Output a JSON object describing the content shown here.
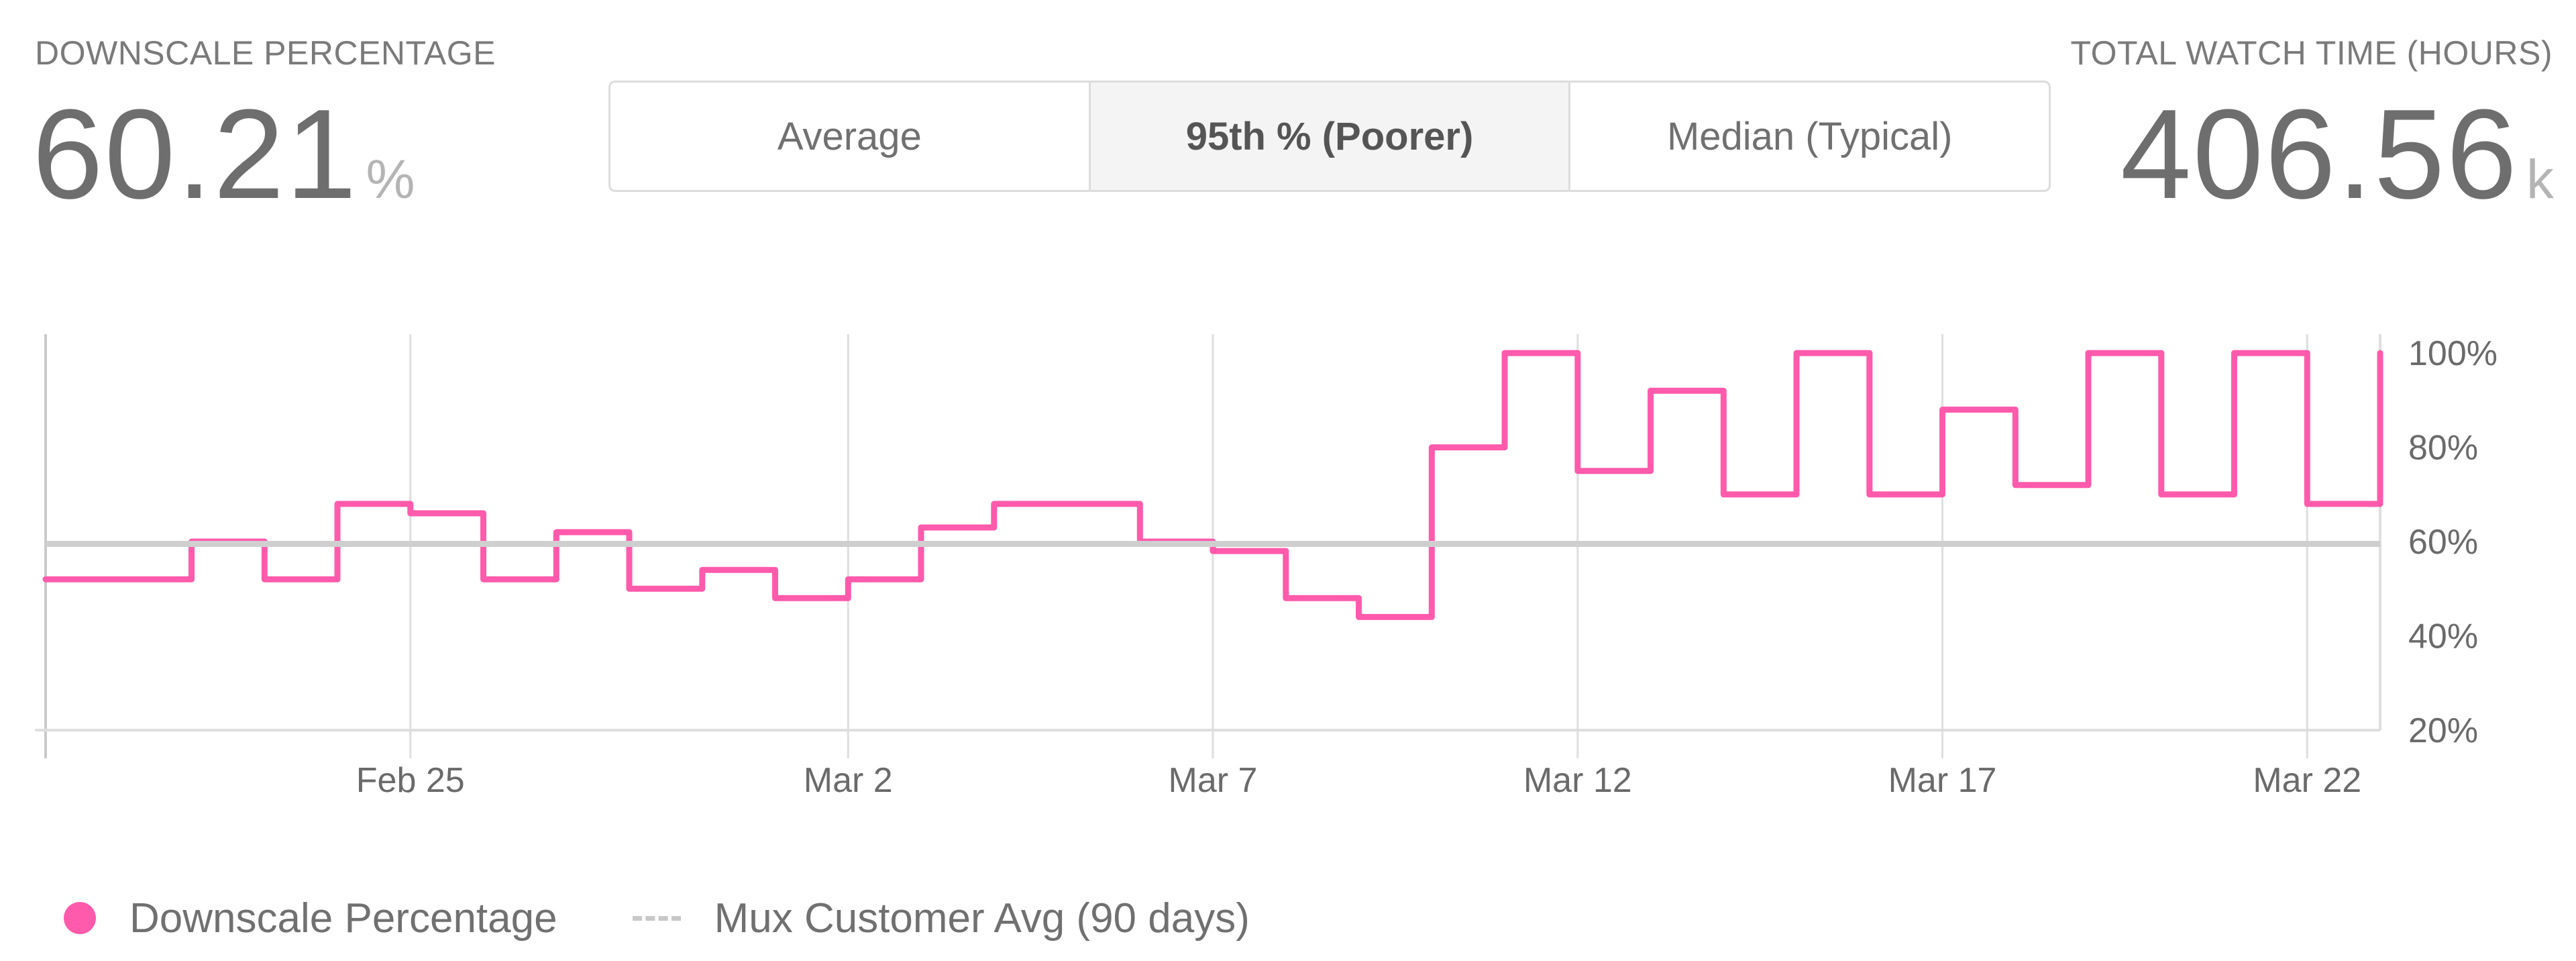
{
  "header": {
    "left_stat": {
      "label": "DOWNSCALE PERCENTAGE",
      "value": "60.21",
      "unit": "%"
    },
    "right_stat": {
      "label": "TOTAL WATCH TIME (HOURS)",
      "value": "406.56",
      "unit": "k"
    },
    "segmented_control": {
      "options": [
        "Average",
        "95th % (Poorer)",
        "Median (Typical)"
      ],
      "selected": "95th % (Poorer)"
    }
  },
  "legend": {
    "series_label": "Downscale Percentage",
    "reference_label": "Mux Customer Avg (90 days)"
  },
  "colors": {
    "series": "#ff5aac",
    "reference": "#cfcfcf",
    "grid": "#dedede",
    "axis": "#c9c9c9",
    "text": "#6d6d6d"
  },
  "chart_data": {
    "type": "line",
    "x_tick_labels": [
      "Feb 25",
      "Mar 2",
      "Mar 7",
      "Mar 12",
      "Mar 17",
      "Mar 22"
    ],
    "x_tick_dates": [
      "2024-02-25",
      "2024-03-02",
      "2024-03-07",
      "2024-03-12",
      "2024-03-17",
      "2024-03-22"
    ],
    "x_range": [
      "2024-02-20",
      "2024-03-23"
    ],
    "y_tick_labels": [
      "100%",
      "80%",
      "60%",
      "40%",
      "20%"
    ],
    "y_ticks": [
      100,
      80,
      60,
      40,
      20
    ],
    "ylim": [
      20,
      104
    ],
    "y_axis_side": "right",
    "grid": "vertical",
    "legend_position": "bottom-left",
    "series": [
      {
        "name": "Downscale Percentage",
        "color": "#ff5aac",
        "x": [
          "2024-02-20",
          "2024-02-21",
          "2024-02-22",
          "2024-02-23",
          "2024-02-24",
          "2024-02-25",
          "2024-02-26",
          "2024-02-27",
          "2024-02-28",
          "2024-02-29",
          "2024-03-01",
          "2024-03-02",
          "2024-03-03",
          "2024-03-04",
          "2024-03-05",
          "2024-03-06",
          "2024-03-07",
          "2024-03-08",
          "2024-03-09",
          "2024-03-10",
          "2024-03-11",
          "2024-03-12",
          "2024-03-13",
          "2024-03-14",
          "2024-03-15",
          "2024-03-16",
          "2024-03-17",
          "2024-03-18",
          "2024-03-19",
          "2024-03-20",
          "2024-03-21",
          "2024-03-22",
          "2024-03-23"
        ],
        "y": [
          52,
          52,
          60,
          52,
          68,
          66,
          52,
          62,
          50,
          54,
          48,
          52,
          63,
          68,
          68,
          60,
          58,
          48,
          44,
          80,
          100,
          75,
          92,
          70,
          100,
          70,
          88,
          72,
          100,
          70,
          100,
          68,
          100
        ]
      },
      {
        "name": "Mux Customer Avg (90 days)",
        "color": "#cfcfcf",
        "x": [
          "2024-02-20",
          "2024-03-23"
        ],
        "y": [
          59.5,
          59.5
        ]
      }
    ]
  }
}
